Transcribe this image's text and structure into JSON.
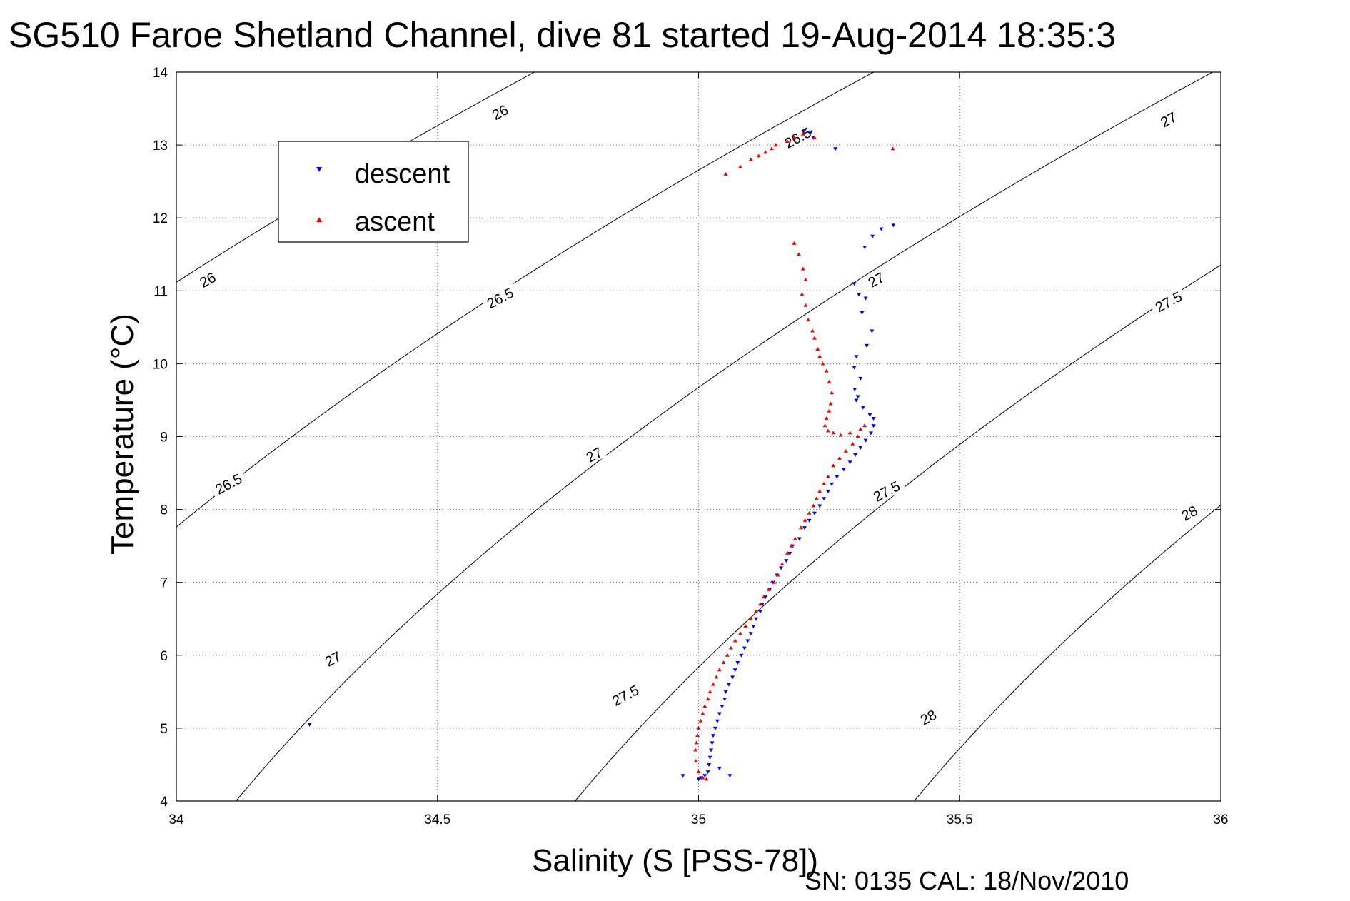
{
  "chart_data": {
    "type": "scatter",
    "title": "SG510 Faroe Shetland Channel, dive 81 started 19-Aug-2014 18:35:3",
    "xlabel": "Salinity (S [PSS-78])",
    "ylabel": "Temperature (°C)",
    "footer": "SN: 0135  CAL: 18/Nov/2010",
    "xlim": [
      34,
      36
    ],
    "ylim": [
      4,
      14
    ],
    "xticks": [
      "34",
      "34.5",
      "35",
      "35.5",
      "36"
    ],
    "yticks": [
      "4",
      "5",
      "6",
      "7",
      "8",
      "9",
      "10",
      "11",
      "12",
      "13",
      "14"
    ],
    "grid": true,
    "legend_position": "top-left",
    "colors": {
      "descent": "#0000ff",
      "ascent": "#ff0000",
      "contour": "#000000"
    },
    "contours": {
      "levels": [
        "26",
        "26.5",
        "27",
        "27.5",
        "28"
      ],
      "labels": [
        {
          "text": "26",
          "x": 34.06,
          "y": 11.15
        },
        {
          "text": "26",
          "x": 34.62,
          "y": 13.45
        },
        {
          "text": "26.5",
          "x": 34.1,
          "y": 8.35
        },
        {
          "text": "26.5",
          "x": 34.62,
          "y": 10.9
        },
        {
          "text": "26.5",
          "x": 35.19,
          "y": 13.1
        },
        {
          "text": "27",
          "x": 34.3,
          "y": 5.95
        },
        {
          "text": "27",
          "x": 34.8,
          "y": 8.75
        },
        {
          "text": "27",
          "x": 35.34,
          "y": 11.15
        },
        {
          "text": "27",
          "x": 35.9,
          "y": 13.35
        },
        {
          "text": "27.5",
          "x": 34.86,
          "y": 5.45
        },
        {
          "text": "27.5",
          "x": 35.36,
          "y": 8.25
        },
        {
          "text": "27.5",
          "x": 35.9,
          "y": 10.85
        },
        {
          "text": "28",
          "x": 35.44,
          "y": 5.15
        },
        {
          "text": "28",
          "x": 35.94,
          "y": 7.95
        }
      ]
    },
    "series": [
      {
        "name": "descent",
        "marker": "triangle-down",
        "x": [
          35.203,
          35.215,
          35.22,
          35.262,
          35.373,
          35.35,
          35.333,
          35.318,
          35.298,
          35.307,
          35.32,
          35.313,
          35.332,
          35.322,
          35.302,
          35.298,
          35.31,
          35.299,
          35.305,
          35.302,
          35.315,
          35.328,
          35.335,
          35.335,
          35.33,
          35.32,
          35.31,
          35.3,
          35.29,
          35.278,
          35.265,
          35.255,
          35.248,
          35.24,
          35.232,
          35.222,
          35.212,
          35.203,
          35.193,
          35.18,
          35.175,
          35.168,
          35.158,
          35.15,
          35.142,
          35.136,
          35.128,
          35.122,
          35.118,
          35.11,
          35.105,
          35.1,
          35.094,
          35.088,
          35.082,
          35.075,
          35.07,
          35.065,
          35.058,
          35.052,
          35.05,
          35.045,
          35.04,
          35.036,
          35.032,
          35.028,
          35.026,
          35.024,
          35.022,
          35.02,
          35.04,
          35.018,
          35.012,
          35.005,
          35.0,
          34.97,
          35.06,
          34.255
        ],
        "y": [
          13.2,
          13.18,
          13.1,
          12.95,
          11.9,
          11.85,
          11.75,
          11.6,
          11.1,
          10.95,
          10.9,
          10.7,
          10.45,
          10.25,
          10.1,
          9.95,
          9.8,
          9.65,
          9.55,
          9.5,
          9.4,
          9.3,
          9.25,
          9.15,
          9.05,
          8.95,
          8.85,
          8.75,
          8.65,
          8.55,
          8.45,
          8.35,
          8.25,
          8.15,
          8.05,
          7.95,
          7.85,
          7.75,
          7.6,
          7.5,
          7.4,
          7.3,
          7.2,
          7.1,
          7.0,
          6.9,
          6.8,
          6.7,
          6.6,
          6.5,
          6.4,
          6.3,
          6.2,
          6.1,
          6.0,
          5.9,
          5.8,
          5.7,
          5.6,
          5.5,
          5.4,
          5.3,
          5.2,
          5.1,
          5.0,
          4.9,
          4.8,
          4.7,
          4.6,
          4.5,
          4.45,
          4.4,
          4.35,
          4.32,
          4.3,
          4.35,
          4.35,
          5.05
        ]
      },
      {
        "name": "ascent",
        "marker": "triangle-up",
        "x": [
          35.222,
          35.2,
          35.183,
          35.17,
          35.148,
          35.14,
          35.128,
          35.115,
          35.1,
          35.08,
          35.052,
          35.372,
          35.183,
          35.192,
          35.2,
          35.205,
          35.198,
          35.205,
          35.21,
          35.218,
          35.222,
          35.228,
          35.232,
          35.238,
          35.245,
          35.25,
          35.255,
          35.253,
          35.25,
          35.245,
          35.242,
          35.248,
          35.258,
          35.272,
          35.29,
          35.31,
          35.318,
          35.305,
          35.295,
          35.282,
          35.27,
          35.258,
          35.248,
          35.24,
          35.232,
          35.226,
          35.22,
          35.212,
          35.204,
          35.196,
          35.185,
          35.178,
          35.17,
          35.16,
          35.152,
          35.145,
          35.135,
          35.125,
          35.118,
          35.11,
          35.1,
          35.09,
          35.08,
          35.07,
          35.062,
          35.055,
          35.048,
          35.04,
          35.034,
          35.028,
          35.022,
          35.018,
          35.012,
          35.008,
          35.004,
          35.0,
          34.998,
          34.996,
          34.994,
          34.995,
          35.0,
          35.008,
          35.015
        ],
        "y": [
          13.1,
          13.15,
          13.1,
          13.05,
          13.0,
          12.95,
          12.9,
          12.85,
          12.8,
          12.7,
          12.6,
          12.95,
          11.65,
          11.5,
          11.3,
          11.15,
          10.95,
          10.8,
          10.6,
          10.45,
          10.35,
          10.2,
          10.1,
          10.0,
          9.9,
          9.75,
          9.6,
          9.45,
          9.35,
          9.25,
          9.15,
          9.08,
          9.05,
          9.02,
          9.05,
          9.1,
          9.15,
          9.0,
          8.9,
          8.8,
          8.7,
          8.6,
          8.45,
          8.35,
          8.25,
          8.15,
          8.05,
          7.95,
          7.85,
          7.75,
          7.6,
          7.5,
          7.4,
          7.25,
          7.1,
          7.0,
          6.9,
          6.8,
          6.7,
          6.6,
          6.5,
          6.4,
          6.3,
          6.2,
          6.1,
          6.0,
          5.9,
          5.8,
          5.7,
          5.6,
          5.5,
          5.4,
          5.3,
          5.2,
          5.1,
          5.0,
          4.9,
          4.8,
          4.7,
          4.55,
          4.4,
          4.32,
          4.3
        ]
      }
    ]
  }
}
